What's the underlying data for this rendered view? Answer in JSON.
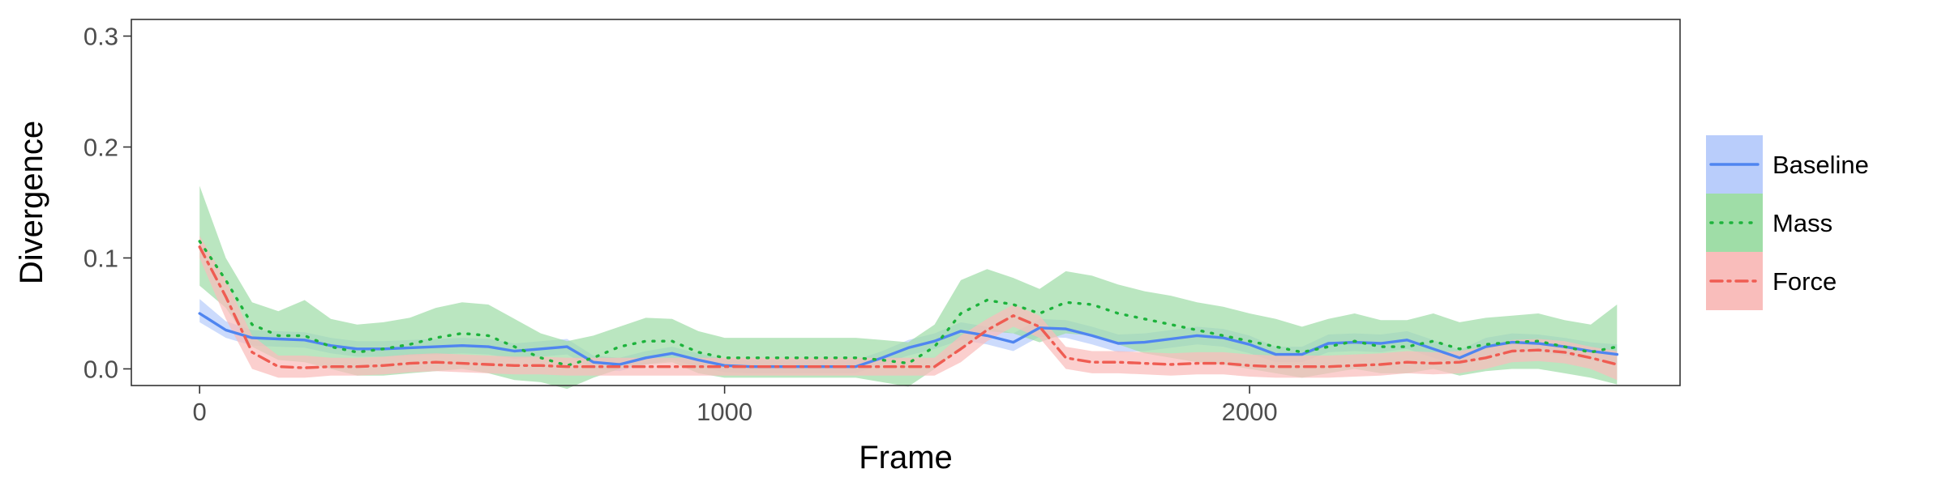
{
  "chart_data": {
    "type": "line",
    "title": "",
    "xlabel": "Frame",
    "ylabel": "Divergence",
    "xlim": [
      -130,
      2820
    ],
    "ylim": [
      -0.015,
      0.315
    ],
    "xticks": [
      0,
      1000,
      2000
    ],
    "xtick_labels": [
      "0",
      "1000",
      "2000"
    ],
    "yticks": [
      0.0,
      0.1,
      0.2,
      0.3
    ],
    "ytick_labels": [
      "0.0",
      "0.1",
      "0.2",
      "0.3"
    ],
    "grid": false,
    "legend_position": "right",
    "x": [
      0,
      50,
      100,
      150,
      200,
      250,
      300,
      350,
      400,
      450,
      500,
      550,
      600,
      650,
      700,
      750,
      800,
      850,
      900,
      950,
      1000,
      1050,
      1100,
      1150,
      1200,
      1250,
      1300,
      1350,
      1400,
      1450,
      1500,
      1550,
      1600,
      1650,
      1700,
      1750,
      1800,
      1850,
      1900,
      1950,
      2000,
      2050,
      2100,
      2150,
      2200,
      2250,
      2300,
      2350,
      2400,
      2450,
      2500,
      2550,
      2600,
      2650,
      2700
    ],
    "series": [
      {
        "name": "Baseline",
        "color": "#4F85F0",
        "fill": "#B9CDFB",
        "dash": "solid",
        "values": [
          0.05,
          0.035,
          0.028,
          0.027,
          0.026,
          0.021,
          0.018,
          0.018,
          0.019,
          0.02,
          0.021,
          0.02,
          0.016,
          0.018,
          0.02,
          0.006,
          0.004,
          0.01,
          0.014,
          0.008,
          0.003,
          0.002,
          0.002,
          0.002,
          0.002,
          0.002,
          0.01,
          0.019,
          0.025,
          0.034,
          0.03,
          0.024,
          0.037,
          0.036,
          0.03,
          0.023,
          0.024,
          0.027,
          0.03,
          0.028,
          0.022,
          0.013,
          0.013,
          0.023,
          0.024,
          0.023,
          0.026,
          0.018,
          0.01,
          0.02,
          0.024,
          0.023,
          0.02,
          0.016,
          0.013
        ],
        "lower": [
          0.042,
          0.028,
          0.021,
          0.02,
          0.019,
          0.014,
          0.011,
          0.011,
          0.012,
          0.013,
          0.014,
          0.013,
          0.009,
          0.011,
          0.013,
          0.0,
          -0.002,
          0.004,
          0.008,
          0.002,
          -0.003,
          -0.004,
          -0.004,
          -0.004,
          -0.004,
          -0.004,
          0.004,
          0.012,
          0.018,
          0.026,
          0.022,
          0.016,
          0.029,
          0.028,
          0.022,
          0.015,
          0.016,
          0.019,
          0.022,
          0.02,
          0.014,
          0.006,
          0.006,
          0.015,
          0.016,
          0.015,
          0.018,
          0.01,
          0.003,
          0.012,
          0.016,
          0.015,
          0.012,
          0.008,
          0.004
        ],
        "upper": [
          0.063,
          0.043,
          0.035,
          0.034,
          0.033,
          0.028,
          0.025,
          0.025,
          0.026,
          0.027,
          0.028,
          0.027,
          0.023,
          0.025,
          0.027,
          0.012,
          0.01,
          0.016,
          0.02,
          0.014,
          0.009,
          0.008,
          0.008,
          0.008,
          0.008,
          0.008,
          0.016,
          0.026,
          0.032,
          0.042,
          0.038,
          0.032,
          0.045,
          0.044,
          0.038,
          0.031,
          0.032,
          0.035,
          0.038,
          0.036,
          0.03,
          0.02,
          0.02,
          0.031,
          0.032,
          0.031,
          0.034,
          0.026,
          0.017,
          0.028,
          0.032,
          0.031,
          0.028,
          0.024,
          0.022
        ]
      },
      {
        "name": "Mass",
        "color": "#1DB33C",
        "fill": "#9FDDA7",
        "dash": "dotted",
        "values": [
          0.115,
          0.08,
          0.04,
          0.03,
          0.03,
          0.02,
          0.015,
          0.018,
          0.022,
          0.028,
          0.032,
          0.03,
          0.02,
          0.01,
          0.003,
          0.01,
          0.02,
          0.025,
          0.025,
          0.015,
          0.01,
          0.01,
          0.01,
          0.01,
          0.01,
          0.01,
          0.008,
          0.005,
          0.02,
          0.05,
          0.062,
          0.058,
          0.05,
          0.06,
          0.058,
          0.05,
          0.045,
          0.04,
          0.035,
          0.03,
          0.025,
          0.02,
          0.015,
          0.02,
          0.025,
          0.02,
          0.02,
          0.025,
          0.018,
          0.022,
          0.024,
          0.025,
          0.02,
          0.015,
          0.02
        ],
        "lower": [
          0.075,
          0.055,
          0.02,
          0.008,
          0.006,
          0.0,
          -0.006,
          -0.006,
          -0.004,
          -0.002,
          0.0,
          -0.004,
          -0.01,
          -0.012,
          -0.018,
          -0.008,
          0.0,
          0.004,
          0.006,
          -0.004,
          -0.008,
          -0.008,
          -0.008,
          -0.008,
          -0.008,
          -0.008,
          -0.012,
          -0.016,
          0.0,
          0.018,
          0.034,
          0.032,
          0.024,
          0.032,
          0.03,
          0.022,
          0.014,
          0.01,
          0.006,
          0.004,
          0.0,
          -0.004,
          -0.008,
          -0.004,
          0.0,
          -0.004,
          -0.004,
          0.0,
          -0.006,
          -0.002,
          0.0,
          0.0,
          -0.004,
          -0.008,
          -0.014
        ],
        "upper": [
          0.165,
          0.1,
          0.06,
          0.052,
          0.062,
          0.045,
          0.04,
          0.042,
          0.046,
          0.055,
          0.06,
          0.058,
          0.045,
          0.032,
          0.025,
          0.03,
          0.038,
          0.046,
          0.045,
          0.034,
          0.028,
          0.028,
          0.028,
          0.028,
          0.028,
          0.028,
          0.026,
          0.024,
          0.04,
          0.08,
          0.09,
          0.082,
          0.072,
          0.088,
          0.084,
          0.076,
          0.07,
          0.066,
          0.06,
          0.056,
          0.05,
          0.045,
          0.038,
          0.045,
          0.05,
          0.044,
          0.044,
          0.05,
          0.042,
          0.046,
          0.048,
          0.05,
          0.044,
          0.04,
          0.058
        ]
      },
      {
        "name": "Force",
        "color": "#EF5C52",
        "fill": "#F9BDBB",
        "dash": "dashdot",
        "values": [
          0.11,
          0.065,
          0.015,
          0.002,
          0.001,
          0.002,
          0.002,
          0.003,
          0.005,
          0.006,
          0.005,
          0.004,
          0.003,
          0.003,
          0.002,
          0.002,
          0.002,
          0.002,
          0.002,
          0.002,
          0.002,
          0.002,
          0.002,
          0.002,
          0.002,
          0.002,
          0.002,
          0.002,
          0.002,
          0.018,
          0.035,
          0.048,
          0.038,
          0.01,
          0.006,
          0.006,
          0.005,
          0.004,
          0.005,
          0.005,
          0.003,
          0.002,
          0.002,
          0.002,
          0.003,
          0.004,
          0.006,
          0.005,
          0.006,
          0.01,
          0.016,
          0.017,
          0.015,
          0.01,
          0.004
        ],
        "lower": [
          0.1,
          0.045,
          0.0,
          -0.008,
          -0.008,
          -0.006,
          -0.006,
          -0.005,
          -0.003,
          -0.002,
          -0.003,
          -0.004,
          -0.005,
          -0.005,
          -0.006,
          -0.006,
          -0.006,
          -0.006,
          -0.006,
          -0.006,
          -0.006,
          -0.006,
          -0.006,
          -0.006,
          -0.006,
          -0.006,
          -0.006,
          -0.006,
          -0.006,
          0.006,
          0.025,
          0.038,
          0.028,
          0.0,
          -0.004,
          -0.004,
          -0.005,
          -0.006,
          -0.005,
          -0.005,
          -0.007,
          -0.008,
          -0.008,
          -0.008,
          -0.007,
          -0.006,
          -0.004,
          -0.005,
          -0.004,
          0.0,
          0.006,
          0.007,
          0.005,
          0.0,
          -0.01
        ],
        "upper": [
          0.12,
          0.08,
          0.03,
          0.012,
          0.012,
          0.01,
          0.01,
          0.011,
          0.013,
          0.014,
          0.013,
          0.012,
          0.011,
          0.011,
          0.01,
          0.01,
          0.01,
          0.01,
          0.01,
          0.01,
          0.01,
          0.01,
          0.01,
          0.01,
          0.01,
          0.01,
          0.01,
          0.01,
          0.01,
          0.03,
          0.045,
          0.058,
          0.048,
          0.02,
          0.016,
          0.016,
          0.015,
          0.014,
          0.015,
          0.015,
          0.013,
          0.012,
          0.012,
          0.012,
          0.013,
          0.014,
          0.016,
          0.015,
          0.016,
          0.02,
          0.026,
          0.027,
          0.025,
          0.02,
          0.016
        ]
      }
    ]
  }
}
